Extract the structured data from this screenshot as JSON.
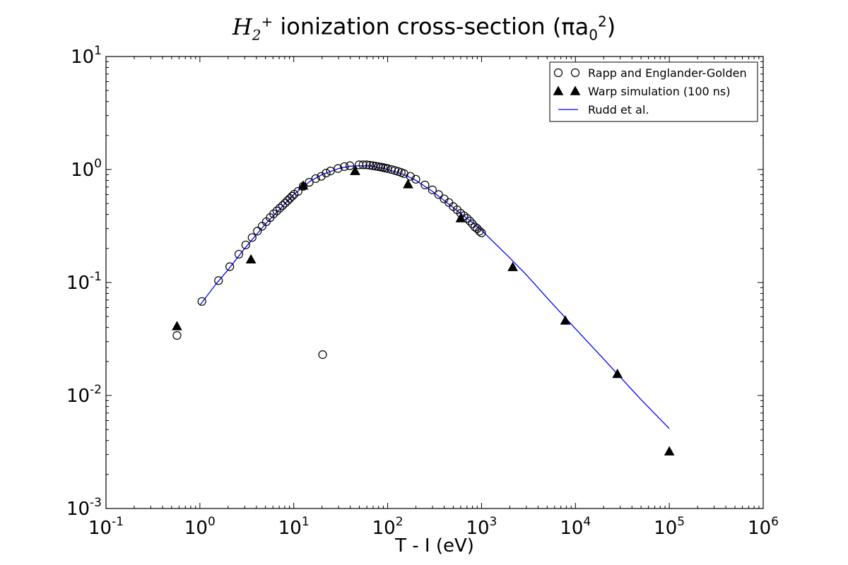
{
  "chart_data": {
    "type": "scatter",
    "title": {
      "base": "H",
      "sub": "2",
      "sup": "+",
      "text": "ionization cross-section",
      "unit_prefix": "(πa",
      "unit_sub": "0",
      "unit_sup": "2",
      "unit_suffix": ")"
    },
    "xlabel": "T - I (eV)",
    "ylabel": "",
    "xscale": "log",
    "yscale": "log",
    "xlim": [
      0.1,
      1000000
    ],
    "ylim": [
      0.001,
      10
    ],
    "xticks": [
      {
        "value": 0.1,
        "base": "10",
        "exp": "-1"
      },
      {
        "value": 1,
        "base": "10",
        "exp": "0"
      },
      {
        "value": 10,
        "base": "10",
        "exp": "1"
      },
      {
        "value": 100,
        "base": "10",
        "exp": "2"
      },
      {
        "value": 1000,
        "base": "10",
        "exp": "3"
      },
      {
        "value": 10000,
        "base": "10",
        "exp": "4"
      },
      {
        "value": 100000,
        "base": "10",
        "exp": "5"
      },
      {
        "value": 1000000,
        "base": "10",
        "exp": "6"
      }
    ],
    "yticks": [
      {
        "value": 0.001,
        "base": "10",
        "exp": "-3"
      },
      {
        "value": 0.01,
        "base": "10",
        "exp": "-2"
      },
      {
        "value": 0.1,
        "base": "10",
        "exp": "-1"
      },
      {
        "value": 1,
        "base": "10",
        "exp": "0"
      },
      {
        "value": 10,
        "base": "10",
        "exp": "1"
      }
    ],
    "legend_position": "top-right",
    "grid": false,
    "series": [
      {
        "name": "Rapp and Englander-Golden",
        "kind": "scatter",
        "marker": "circle-open",
        "color": "#000000",
        "points": [
          [
            0.57,
            0.034
          ],
          [
            1.05,
            0.068
          ],
          [
            1.58,
            0.104
          ],
          [
            2.08,
            0.138
          ],
          [
            2.6,
            0.178
          ],
          [
            3.08,
            0.215
          ],
          [
            3.6,
            0.25
          ],
          [
            4.1,
            0.285
          ],
          [
            4.6,
            0.315
          ],
          [
            5.1,
            0.345
          ],
          [
            5.6,
            0.375
          ],
          [
            6.1,
            0.405
          ],
          [
            6.6,
            0.43
          ],
          [
            7.1,
            0.455
          ],
          [
            7.6,
            0.48
          ],
          [
            8.1,
            0.505
          ],
          [
            8.6,
            0.53
          ],
          [
            9.1,
            0.555
          ],
          [
            9.6,
            0.58
          ],
          [
            10.1,
            0.605
          ],
          [
            11.1,
            0.64
          ],
          [
            12.6,
            0.71
          ],
          [
            14.6,
            0.77
          ],
          [
            17.1,
            0.83
          ],
          [
            19.6,
            0.87
          ],
          [
            20.3,
            0.023
          ],
          [
            22.1,
            0.93
          ],
          [
            24.6,
            0.97
          ],
          [
            29.6,
            1.02
          ],
          [
            34.6,
            1.06
          ],
          [
            39.6,
            1.08
          ],
          [
            49.6,
            1.1
          ],
          [
            54.6,
            1.1
          ],
          [
            59.6,
            1.1
          ],
          [
            64.6,
            1.09
          ],
          [
            69.6,
            1.08
          ],
          [
            74.6,
            1.07
          ],
          [
            79.6,
            1.06
          ],
          [
            84.6,
            1.05
          ],
          [
            89.6,
            1.04
          ],
          [
            94.6,
            1.03
          ],
          [
            99.6,
            1.02
          ],
          [
            109.6,
            1.0
          ],
          [
            119.6,
            0.98
          ],
          [
            129.6,
            0.96
          ],
          [
            139.6,
            0.94
          ],
          [
            149.6,
            0.92
          ],
          [
            174.6,
            0.87
          ],
          [
            199.6,
            0.82
          ],
          [
            249.6,
            0.73
          ],
          [
            299.6,
            0.66
          ],
          [
            349.6,
            0.6
          ],
          [
            399.6,
            0.55
          ],
          [
            449.6,
            0.51
          ],
          [
            499.6,
            0.47
          ],
          [
            549.6,
            0.44
          ],
          [
            599.6,
            0.41
          ],
          [
            649.6,
            0.39
          ],
          [
            699.6,
            0.37
          ],
          [
            749.6,
            0.35
          ],
          [
            799.6,
            0.33
          ],
          [
            849.6,
            0.31
          ],
          [
            899.6,
            0.3
          ],
          [
            949.6,
            0.285
          ],
          [
            999.6,
            0.275
          ]
        ]
      },
      {
        "name": "Warp simulation (100 ns)",
        "kind": "scatter",
        "marker": "triangle-filled",
        "color": "#000000",
        "points": [
          [
            0.57,
            0.041
          ],
          [
            3.5,
            0.16
          ],
          [
            12.6,
            0.72
          ],
          [
            45,
            0.97
          ],
          [
            165,
            0.74
          ],
          [
            600,
            0.37
          ],
          [
            2150,
            0.137
          ],
          [
            7800,
            0.046
          ],
          [
            28000,
            0.0155
          ],
          [
            100000,
            0.0032
          ]
        ]
      },
      {
        "name": "Rudd et al.",
        "kind": "line",
        "color": "#0000ff",
        "points": [
          [
            1.0,
            0.063
          ],
          [
            1.5,
            0.098
          ],
          [
            2,
            0.13
          ],
          [
            3,
            0.2
          ],
          [
            5,
            0.33
          ],
          [
            7,
            0.44
          ],
          [
            10,
            0.6
          ],
          [
            15,
            0.79
          ],
          [
            20,
            0.9
          ],
          [
            30,
            1.02
          ],
          [
            40,
            1.07
          ],
          [
            50,
            1.08
          ],
          [
            70,
            1.07
          ],
          [
            100,
            1.0
          ],
          [
            150,
            0.9
          ],
          [
            200,
            0.8
          ],
          [
            300,
            0.64
          ],
          [
            500,
            0.46
          ],
          [
            700,
            0.37
          ],
          [
            1000,
            0.29
          ],
          [
            2000,
            0.165
          ],
          [
            3000,
            0.117
          ],
          [
            5000,
            0.073
          ],
          [
            10000,
            0.039
          ],
          [
            20000,
            0.021
          ],
          [
            50000,
            0.0092
          ],
          [
            100000,
            0.0051
          ]
        ]
      }
    ]
  }
}
